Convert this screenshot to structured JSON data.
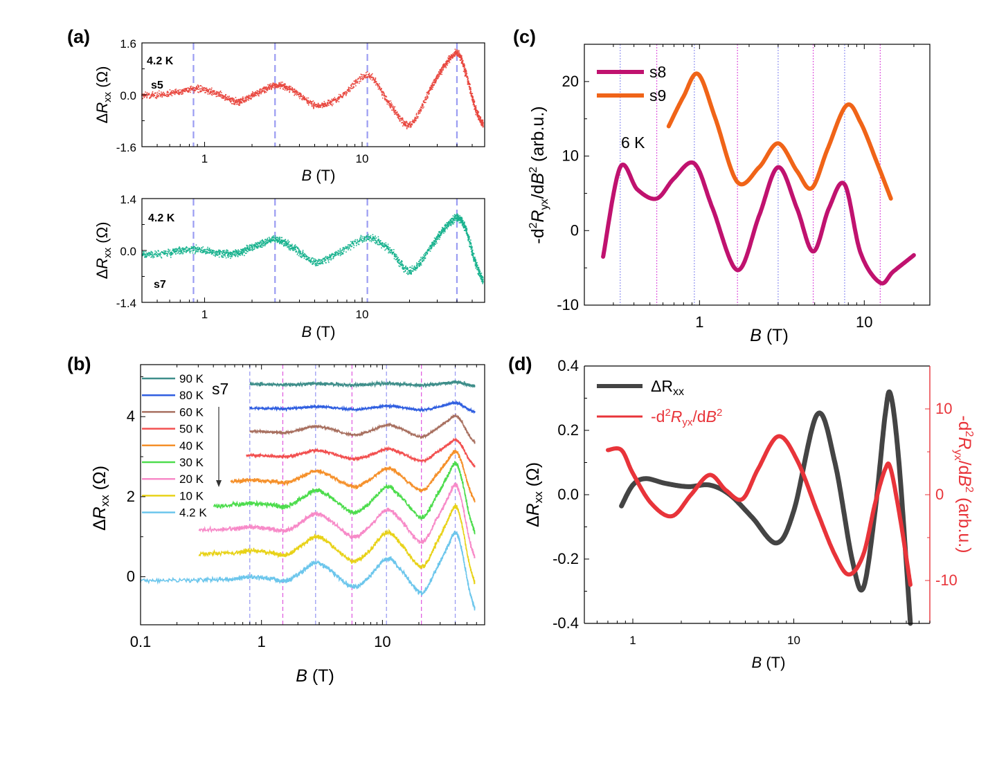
{
  "colors": {
    "blue_dash": "#9a9cf2",
    "magenta_dash": "#e060e0",
    "s5": "#e8473f",
    "s7": "#18b28e",
    "s8": "#c0126f",
    "s9": "#f06418",
    "gray": "#444444",
    "red": "#e8343a",
    "axis_red": "#e8343a"
  },
  "chart_data": [
    {
      "panel": "(a)",
      "type": "scatter",
      "sample": "s5",
      "temperature": "4.2 K",
      "xscale": "log",
      "xlim": [
        0.4,
        60
      ],
      "ylim": [
        -1.6,
        1.6
      ],
      "yticks": [
        "1.6",
        "0.0",
        "-1.6"
      ],
      "xticks": [
        "1",
        "10"
      ],
      "xlabel": "B (T)",
      "ylabel": "ΔRxx (Ω)",
      "vlines": [
        0.85,
        2.8,
        10.8,
        40
      ],
      "series": [
        {
          "name": "s5",
          "x": [
            0.4,
            0.6,
            0.85,
            1.2,
            1.6,
            2.1,
            2.8,
            3.6,
            5,
            7,
            10.8,
            15,
            20,
            27,
            33,
            40,
            45,
            52,
            58
          ],
          "y": [
            0.0,
            0.05,
            0.2,
            0.05,
            -0.2,
            0.05,
            0.3,
            0.15,
            -0.3,
            -0.1,
            0.6,
            -0.3,
            -0.9,
            0.2,
            0.9,
            1.3,
            0.7,
            -0.4,
            -0.9
          ]
        }
      ]
    },
    {
      "panel": "(a-lower)",
      "type": "scatter",
      "sample": "s7",
      "temperature": "4.2 K",
      "xscale": "log",
      "xlim": [
        0.4,
        60
      ],
      "ylim": [
        -1.4,
        1.4
      ],
      "yticks": [
        "1.4",
        "0.0",
        "-1.4"
      ],
      "xticks": [
        "1",
        "10"
      ],
      "xlabel": "B (T)",
      "ylabel": "ΔRxx (Ω)",
      "vlines": [
        0.85,
        2.8,
        10.8,
        40
      ],
      "series": [
        {
          "name": "s7",
          "x": [
            0.4,
            0.6,
            0.85,
            1.2,
            1.6,
            2.1,
            2.8,
            3.6,
            5,
            7,
            10.8,
            15,
            20,
            27,
            33,
            40,
            45,
            52,
            58
          ],
          "y": [
            -0.1,
            -0.05,
            0.05,
            -0.05,
            -0.05,
            0.15,
            0.3,
            0.1,
            -0.3,
            -0.05,
            0.35,
            0.0,
            -0.55,
            0.1,
            0.6,
            0.9,
            0.6,
            -0.3,
            -0.8
          ]
        }
      ]
    },
    {
      "panel": "(b)",
      "type": "line",
      "sample": "s7",
      "xscale": "log",
      "xlim": [
        0.1,
        70
      ],
      "ylim": [
        -1.2,
        5.3
      ],
      "yticks": [
        "0",
        "2",
        "4"
      ],
      "xticks": [
        "0.1",
        "1",
        "10"
      ],
      "xlabel": "B (T)",
      "ylabel": "ΔRxx (Ω)",
      "vlines_blue": [
        0.8,
        2.8,
        10.8,
        40
      ],
      "vlines_magenta": [
        1.5,
        5.6,
        21
      ],
      "series": [
        {
          "name": "90 K",
          "color": "#3e8e8a",
          "offset": 4.8,
          "x_start": 0.8
        },
        {
          "name": "80 K",
          "color": "#2f5ee0",
          "offset": 4.2,
          "x_start": 0.8
        },
        {
          "name": "60 K",
          "color": "#a87060",
          "offset": 3.6,
          "x_start": 0.8
        },
        {
          "name": "50 K",
          "color": "#f25050",
          "offset": 3.0,
          "x_start": 0.75
        },
        {
          "name": "40 K",
          "color": "#f5902a",
          "offset": 2.35,
          "x_start": 0.55
        },
        {
          "name": "30 K",
          "color": "#4cdc4c",
          "offset": 1.75,
          "x_start": 0.4
        },
        {
          "name": "20 K",
          "color": "#f78ac8",
          "offset": 1.15,
          "x_start": 0.3
        },
        {
          "name": "10 K",
          "color": "#e8d218",
          "offset": 0.55,
          "x_start": 0.3
        },
        {
          "name": "4.2 K",
          "color": "#6cc6ec",
          "offset": -0.1,
          "x_start": 0.1
        }
      ],
      "annotation": "s7"
    },
    {
      "panel": "(c)",
      "type": "line",
      "xscale": "log",
      "xlim": [
        0.2,
        25
      ],
      "ylim": [
        -10,
        25
      ],
      "yticks": [
        "-10",
        "0",
        "10",
        "20"
      ],
      "xticks": [
        "1",
        "10"
      ],
      "xlabel": "B (T)",
      "ylabel": "-d2Ryx/dB2 (arb.u.)",
      "vlines_blue": [
        0.33,
        0.93,
        3.0,
        7.6
      ],
      "vlines_magenta": [
        0.55,
        1.7,
        4.9,
        12.5
      ],
      "annotation": "6 K",
      "series": [
        {
          "name": "s8",
          "x": [
            0.26,
            0.33,
            0.42,
            0.55,
            0.7,
            0.93,
            1.2,
            1.7,
            2.3,
            3.0,
            3.9,
            4.9,
            6.1,
            7.6,
            9.5,
            12.5,
            15,
            20
          ],
          "y": [
            -3.5,
            8.5,
            5.5,
            4.3,
            7,
            9,
            3,
            -5.3,
            2,
            8.5,
            3,
            -2.8,
            3,
            6.2,
            -3,
            -7,
            -5.5,
            -3.3
          ]
        },
        {
          "name": "s9",
          "x": [
            0.65,
            0.8,
            0.98,
            1.25,
            1.7,
            2.3,
            3.0,
            3.9,
            4.8,
            6,
            7.8,
            9.5,
            12,
            14.5
          ],
          "y": [
            14,
            18,
            21,
            15,
            6.5,
            8.5,
            11.7,
            8,
            5.7,
            11,
            16.8,
            14.5,
            9,
            4.3
          ]
        }
      ]
    },
    {
      "panel": "(d)",
      "type": "line",
      "xscale": "log",
      "xlim": [
        0.5,
        70
      ],
      "ylim": [
        -0.4,
        0.4
      ],
      "yticks": [
        "0.4",
        "0.2",
        "0.0",
        "-0.2",
        "-0.4"
      ],
      "y2lim": [
        -15,
        15
      ],
      "y2ticks": [
        "10",
        "0",
        "-10"
      ],
      "xticks": [
        "1",
        "10"
      ],
      "xlabel": "B (T)",
      "ylabel": "ΔRxx (Ω)",
      "y2label": "-d2Ryx/dB2 (arb.u.)",
      "series": [
        {
          "name": "ΔRxx",
          "axis": "left",
          "x": [
            0.85,
            1.0,
            1.2,
            1.6,
            2.2,
            3.0,
            4.0,
            5.5,
            7.8,
            10,
            14,
            18,
            23,
            27,
            32,
            37,
            40,
            45,
            53
          ],
          "y": [
            -0.035,
            0.03,
            0.05,
            0.035,
            0.025,
            0.03,
            0.0,
            -0.07,
            -0.15,
            -0.05,
            0.25,
            0.1,
            -0.2,
            -0.29,
            -0.05,
            0.25,
            0.31,
            0.1,
            -0.4
          ]
        },
        {
          "name": "-d2Ryx/dB2",
          "axis": "right",
          "x": [
            0.7,
            0.85,
            1.0,
            1.3,
            1.75,
            2.3,
            3.0,
            3.8,
            4.8,
            6.0,
            8.0,
            10.5,
            14,
            18,
            22,
            27,
            32,
            37,
            40,
            46,
            53
          ],
          "y": [
            5.2,
            5.2,
            2.5,
            -1,
            -2.5,
            0,
            2.3,
            0.5,
            -0.5,
            3,
            6.8,
            4,
            -2,
            -7,
            -9.3,
            -7,
            -1,
            3,
            3.0,
            -3,
            -10.5
          ]
        }
      ]
    }
  ],
  "text": {
    "a_label": "(a)",
    "b_label": "(b)",
    "c_label": "(c)",
    "d_label": "(d)",
    "a1_temp": "4.2 K",
    "a1_sample": "s5",
    "a2_temp": "4.2 K",
    "a2_sample": "s7",
    "b_sample": "s7",
    "c_temp": "6 K",
    "c_legend_s8": "s8",
    "c_legend_s9": "s9",
    "d_legend_rxx": "ΔRxx",
    "d_legend_d2": "-d2Ryx/dB2"
  }
}
